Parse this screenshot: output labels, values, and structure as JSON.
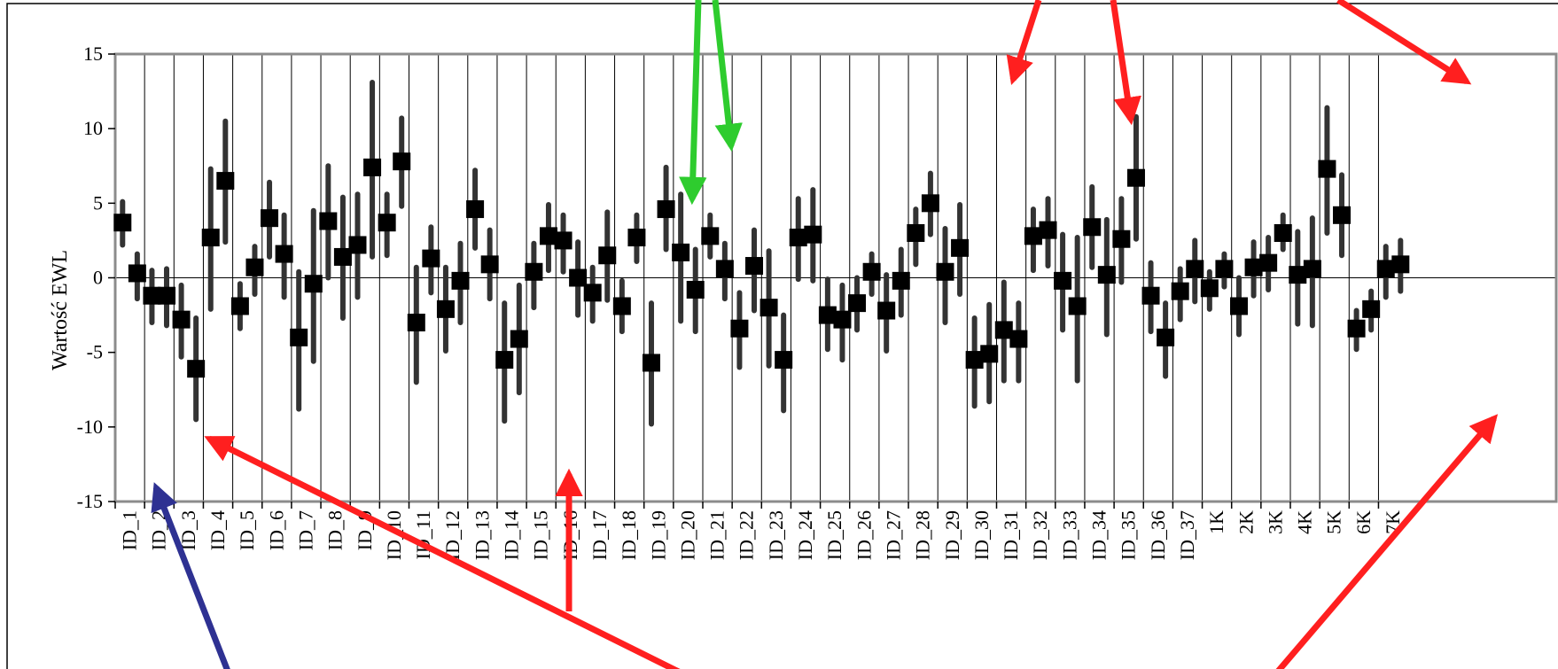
{
  "chart_data": {
    "type": "scatter",
    "style": "point-with-error-bars",
    "ylabel": "Wartość EWL",
    "xlabel": "",
    "ylim": [
      -15,
      15
    ],
    "y_ticks": [
      15,
      10,
      5,
      0,
      -5,
      -10,
      -15
    ],
    "grid": "vertical lines between groups",
    "categories": [
      "ID_1",
      "ID_2",
      "ID_3",
      "ID_4",
      "ID_5",
      "ID_6",
      "ID_7",
      "ID_8",
      "ID_9",
      "ID_10",
      "ID_11",
      "ID_12",
      "ID_13",
      "ID_14",
      "ID_15",
      "ID_16",
      "ID_17",
      "ID_18",
      "ID_19",
      "ID_20",
      "ID_21",
      "ID_22",
      "ID_23",
      "ID_24",
      "ID_25",
      "ID_26",
      "ID_27",
      "ID_28",
      "ID_29",
      "ID_30",
      "ID_31",
      "ID_32",
      "ID_33",
      "ID_34",
      "ID_35",
      "ID_36",
      "ID_37",
      "1K",
      "2K",
      "3K",
      "4K",
      "5K",
      "6K",
      "7K"
    ],
    "points": [
      [
        3.7,
        2.2,
        5.1
      ],
      [
        0.3,
        -1.4,
        1.6
      ],
      [
        -1.2,
        -3.0,
        0.5
      ],
      [
        -1.2,
        -3.2,
        0.6
      ],
      [
        -2.8,
        -5.3,
        -0.5
      ],
      [
        -6.1,
        -9.5,
        -2.7
      ],
      [
        2.7,
        -2.1,
        7.3
      ],
      [
        6.5,
        2.4,
        10.5
      ],
      [
        -1.9,
        -3.4,
        -0.4
      ],
      [
        0.7,
        -1.1,
        2.1
      ],
      [
        4.0,
        1.4,
        6.4
      ],
      [
        1.6,
        -1.3,
        4.2
      ],
      [
        -4.0,
        -8.8,
        0.4
      ],
      [
        -0.4,
        -5.6,
        4.5
      ],
      [
        3.8,
        0.0,
        7.5
      ],
      [
        1.4,
        -2.7,
        5.4
      ],
      [
        2.2,
        -1.3,
        5.6
      ],
      [
        7.4,
        1.4,
        13.1
      ],
      [
        3.7,
        1.5,
        5.6
      ],
      [
        7.8,
        4.8,
        10.7
      ],
      [
        -3.0,
        -7.0,
        0.7
      ],
      [
        1.3,
        -1.0,
        3.4
      ],
      [
        -2.1,
        -4.9,
        0.7
      ],
      [
        -0.2,
        -3.0,
        2.3
      ],
      [
        4.6,
        2.0,
        7.2
      ],
      [
        0.9,
        -1.4,
        3.2
      ],
      [
        -5.5,
        -9.6,
        -1.7
      ],
      [
        -4.1,
        -7.7,
        -0.5
      ],
      [
        0.4,
        -2.0,
        2.3
      ],
      [
        2.8,
        0.5,
        4.9
      ],
      [
        2.5,
        0.4,
        4.2
      ],
      [
        0.0,
        -2.5,
        2.4
      ],
      [
        -1.0,
        -2.9,
        0.7
      ],
      [
        1.5,
        -1.5,
        4.4
      ],
      [
        -1.9,
        -3.6,
        -0.2
      ],
      [
        2.7,
        1.1,
        4.2
      ],
      [
        -5.7,
        -9.8,
        -1.7
      ],
      [
        4.6,
        1.9,
        7.4
      ],
      [
        1.7,
        -2.9,
        5.6
      ],
      [
        -0.8,
        -3.6,
        1.9
      ],
      [
        2.8,
        1.4,
        4.2
      ],
      [
        0.6,
        -1.4,
        2.3
      ],
      [
        -3.4,
        -6.0,
        -1.0
      ],
      [
        0.8,
        -2.2,
        3.2
      ],
      [
        -2.0,
        -5.9,
        1.8
      ],
      [
        -5.5,
        -8.9,
        -2.5
      ],
      [
        2.7,
        -0.1,
        5.3
      ],
      [
        2.9,
        -0.2,
        5.9
      ],
      [
        -2.5,
        -4.8,
        -0.1
      ],
      [
        -2.8,
        -5.5,
        -0.5
      ],
      [
        -1.7,
        -3.5,
        0.0
      ],
      [
        0.4,
        -1.1,
        1.6
      ],
      [
        -2.2,
        -4.9,
        0.2
      ],
      [
        -0.2,
        -2.5,
        1.9
      ],
      [
        3.0,
        0.9,
        4.6
      ],
      [
        5.0,
        2.9,
        7.0
      ],
      [
        0.4,
        -3.0,
        3.3
      ],
      [
        2.0,
        -1.1,
        4.9
      ],
      [
        -5.5,
        -8.6,
        -2.7
      ],
      [
        -5.1,
        -8.3,
        -1.8
      ],
      [
        -3.5,
        -6.9,
        -0.3
      ],
      [
        -4.1,
        -6.9,
        -1.7
      ],
      [
        2.8,
        0.5,
        4.6
      ],
      [
        3.2,
        0.8,
        5.3
      ],
      [
        -0.2,
        -3.5,
        2.9
      ],
      [
        -1.9,
        -6.9,
        2.7
      ],
      [
        3.4,
        0.7,
        6.1
      ],
      [
        0.2,
        -3.8,
        3.9
      ],
      [
        2.6,
        -0.3,
        5.3
      ],
      [
        6.7,
        2.6,
        10.8
      ],
      [
        -1.2,
        -3.6,
        1.0
      ],
      [
        -4.0,
        -6.6,
        -1.7
      ],
      [
        -0.9,
        -2.8,
        0.6
      ],
      [
        0.6,
        -1.6,
        2.5
      ],
      [
        -0.7,
        -2.1,
        0.4
      ],
      [
        0.6,
        -0.6,
        1.6
      ],
      [
        -1.9,
        -3.8,
        0.0
      ],
      [
        0.7,
        -1.2,
        2.4
      ],
      [
        1.0,
        -0.8,
        2.7
      ],
      [
        3.0,
        1.9,
        4.2
      ],
      [
        0.2,
        -3.1,
        3.1
      ],
      [
        0.6,
        -3.2,
        4.0
      ],
      [
        7.3,
        3.0,
        11.4
      ],
      [
        4.2,
        1.5,
        6.9
      ],
      [
        -3.4,
        -4.8,
        -2.2
      ],
      [
        -2.1,
        -3.5,
        -0.9
      ],
      [
        0.6,
        -1.3,
        2.1
      ],
      [
        0.9,
        -0.9,
        2.5
      ]
    ]
  },
  "colors": {
    "marker": "#000000",
    "error_bar": "#333333",
    "grid": "#000000",
    "frame": "#8c8c8c",
    "arrow_red": "#ff1f1f",
    "arrow_green": "#2ecc2e",
    "arrow_blue": "#2e3192"
  }
}
